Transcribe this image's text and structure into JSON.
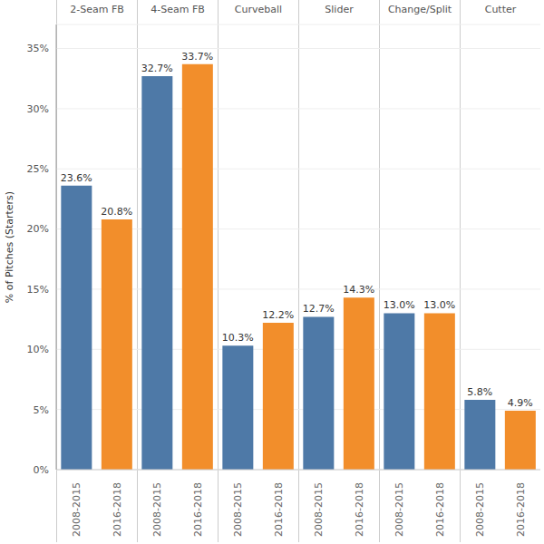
{
  "chart_data": {
    "type": "bar",
    "y_label": "% of Pitches (Starters)",
    "categories": [
      "2-Seam FB",
      "4-Seam FB",
      "Curveball",
      "Slider",
      "Change/Split",
      "Cutter"
    ],
    "series": [
      {
        "name": "2008-2015",
        "color": "#4e79a7",
        "values": [
          23.6,
          32.7,
          10.3,
          12.7,
          13.0,
          5.8
        ],
        "value_labels": [
          "23.6%",
          "32.7%",
          "10.3%",
          "12.7%",
          "13.0%",
          "5.8%"
        ]
      },
      {
        "name": "2016-2018",
        "color": "#f28e2b",
        "values": [
          20.8,
          33.7,
          12.2,
          14.3,
          13.0,
          4.9
        ],
        "value_labels": [
          "20.8%",
          "33.7%",
          "12.2%",
          "14.3%",
          "13.0%",
          "4.9%"
        ]
      }
    ],
    "ylim": [
      0,
      37
    ],
    "yticks": [
      {
        "value": 0,
        "label": "0%"
      },
      {
        "value": 5,
        "label": "5%"
      },
      {
        "value": 10,
        "label": "10%"
      },
      {
        "value": 15,
        "label": "15%"
      },
      {
        "value": 20,
        "label": "20%"
      },
      {
        "value": 25,
        "label": "25%"
      },
      {
        "value": 30,
        "label": "30%"
      },
      {
        "value": 35,
        "label": "35%"
      }
    ],
    "grid": true,
    "data_labels": true
  }
}
